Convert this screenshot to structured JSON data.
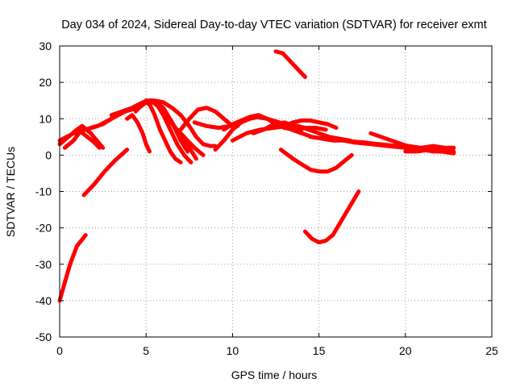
{
  "chart_data": {
    "type": "line",
    "title": "Day 034 of 2024, Sidereal Day-to-day VTEC variation (SDTVAR) for receiver exmt",
    "xlabel": "GPS time / hours",
    "ylabel": "SDTVAR / TECUs",
    "xlim": [
      0,
      25
    ],
    "ylim": [
      -50,
      30
    ],
    "xticks": [
      0,
      5,
      10,
      15,
      20,
      25
    ],
    "yticks": [
      -50,
      -40,
      -30,
      -20,
      -10,
      0,
      10,
      20,
      30
    ],
    "grid": true,
    "color": "#ff0000",
    "series": [
      {
        "name": "arc-1",
        "x": [
          0.0,
          0.3,
          0.6,
          1.0,
          1.5
        ],
        "y": [
          -40,
          -35,
          -30,
          -25,
          -22
        ]
      },
      {
        "name": "arc-2",
        "x": [
          1.4,
          2.0,
          2.6,
          3.2,
          3.9
        ],
        "y": [
          -11,
          -8,
          -4.5,
          -1.5,
          1.5
        ]
      },
      {
        "name": "arc-3",
        "x": [
          0.0,
          0.4,
          0.8,
          1.2,
          1.6,
          2.0,
          2.3
        ],
        "y": [
          4,
          5,
          6,
          6.5,
          5,
          3.5,
          2
        ]
      },
      {
        "name": "arc-4",
        "x": [
          0.0,
          0.5,
          1.0,
          1.3,
          1.8,
          2.5
        ],
        "y": [
          3,
          5,
          7,
          8,
          6,
          2
        ]
      },
      {
        "name": "arc-5",
        "x": [
          0.3,
          0.8,
          1.2,
          1.8,
          2.5,
          3.0,
          3.5,
          4.0
        ],
        "y": [
          2,
          4,
          6.5,
          7.5,
          8.5,
          10,
          11.5,
          12.5
        ]
      },
      {
        "name": "arc-6",
        "x": [
          1.5,
          2.2,
          3.0,
          3.8,
          4.5,
          5.0,
          5.4,
          5.8,
          6.2,
          6.6,
          7.0,
          7.4
        ],
        "y": [
          7,
          8,
          10,
          12,
          13,
          15,
          14.5,
          13,
          11,
          8,
          4,
          1
        ]
      },
      {
        "name": "arc-7",
        "x": [
          3.0,
          3.6,
          4.2,
          4.8,
          5.2,
          5.6,
          6.0,
          6.6,
          7.2,
          7.8,
          8.3
        ],
        "y": [
          11,
          12,
          13,
          14.5,
          15,
          14,
          12,
          8,
          5,
          2,
          0
        ]
      },
      {
        "name": "arc-8",
        "x": [
          4.4,
          4.8,
          5.2,
          5.6,
          6.0,
          6.5,
          7.0,
          7.5,
          7.9
        ],
        "y": [
          12,
          14,
          15,
          14.5,
          13,
          9,
          5,
          2,
          -1
        ]
      },
      {
        "name": "arc-9",
        "x": [
          4.6,
          5.0,
          5.3,
          5.6,
          6.0,
          6.4,
          6.8,
          7.2,
          7.6
        ],
        "y": [
          13,
          14.5,
          15,
          14,
          11,
          7,
          3,
          0,
          -2
        ]
      },
      {
        "name": "arc-10",
        "x": [
          4.2,
          4.6,
          4.9,
          5.2,
          5.5,
          5.8,
          6.1,
          6.4,
          6.7,
          7.0
        ],
        "y": [
          13,
          14,
          14.5,
          14,
          11,
          7,
          4,
          1,
          -1,
          -2
        ]
      },
      {
        "name": "arc-11",
        "x": [
          3.9,
          4.2,
          4.5,
          4.8,
          5.0,
          5.2
        ],
        "y": [
          10,
          11,
          9,
          6,
          3,
          1
        ]
      },
      {
        "name": "arc-12",
        "x": [
          5.0,
          5.5,
          6.0,
          6.5,
          7.0,
          7.5,
          7.9,
          8.3,
          8.7,
          9.0
        ],
        "y": [
          15,
          15,
          14.5,
          13,
          11,
          8,
          5,
          3,
          2.5,
          2.5
        ]
      },
      {
        "name": "arc-13",
        "x": [
          7.0,
          7.5,
          8.0,
          8.5,
          9.0,
          9.5,
          10.0,
          10.3
        ],
        "y": [
          7,
          10,
          12.5,
          13,
          12,
          10,
          8,
          8
        ]
      },
      {
        "name": "arc-14",
        "x": [
          7.8,
          8.5,
          9.2,
          9.9,
          10.6,
          11.3,
          12.0,
          12.7,
          13.4
        ],
        "y": [
          9,
          8,
          7.5,
          8,
          9.5,
          10.5,
          10,
          9,
          7.5
        ]
      },
      {
        "name": "arc-15",
        "x": [
          9.0,
          9.5,
          10.0,
          10.5,
          11.0,
          11.5
        ],
        "y": [
          1.5,
          4,
          7,
          9,
          10,
          10.5
        ]
      },
      {
        "name": "arc-16",
        "x": [
          9.5,
          10.0,
          10.5,
          11.0,
          11.5,
          12.0,
          12.5,
          13.0,
          13.5,
          14.0
        ],
        "y": [
          7,
          8.5,
          9.5,
          10.5,
          11,
          10,
          8.5,
          7.5,
          7,
          7
        ]
      },
      {
        "name": "arc-17",
        "x": [
          10.0,
          10.8,
          11.6,
          12.4,
          13.2,
          13.8,
          14.4,
          15.0,
          15.6,
          16.2,
          16.8
        ],
        "y": [
          4,
          6,
          7,
          7.5,
          8,
          8,
          7,
          6,
          5,
          4.5,
          4
        ]
      },
      {
        "name": "arc-18",
        "x": [
          11.2,
          11.8,
          12.4,
          13.0,
          13.6,
          14.2,
          14.8,
          15.4
        ],
        "y": [
          6,
          7,
          8.5,
          9,
          8,
          7.5,
          7.5,
          7
        ]
      },
      {
        "name": "arc-19",
        "x": [
          13.0,
          13.5,
          14.0,
          14.5,
          15.0,
          15.5,
          16.0
        ],
        "y": [
          8,
          9,
          9.5,
          9.5,
          9,
          8.5,
          7.5
        ]
      },
      {
        "name": "arc-20",
        "x": [
          13.4,
          14.0,
          14.6,
          15.2,
          15.8,
          16.4,
          17.0,
          17.6,
          18.2
        ],
        "y": [
          7,
          6,
          5,
          4.5,
          4,
          4,
          3.5,
          3.5,
          3
        ]
      },
      {
        "name": "arc-21",
        "x": [
          14.5,
          15.5,
          16.5,
          17.5,
          18.5,
          19.5,
          20.5,
          21.5,
          22.5
        ],
        "y": [
          5,
          4.5,
          4,
          3.5,
          3,
          2.5,
          2,
          1.5,
          1
        ]
      },
      {
        "name": "arc-22",
        "x": [
          17.0,
          18.0,
          19.0,
          20.0,
          21.0,
          22.0,
          22.8
        ],
        "y": [
          3.5,
          3,
          2.5,
          2,
          1.5,
          1,
          1
        ]
      },
      {
        "name": "arc-23",
        "x": [
          18.0,
          18.6,
          19.2,
          19.8,
          20.4,
          21.0,
          21.6,
          22.2,
          22.8
        ],
        "y": [
          6,
          5,
          4,
          3,
          2,
          1.5,
          1,
          1,
          0.5
        ]
      },
      {
        "name": "arc-24",
        "x": [
          19.5,
          20.2,
          20.9,
          21.6,
          22.3,
          22.8
        ],
        "y": [
          3,
          2.5,
          2,
          2.5,
          2,
          2
        ]
      },
      {
        "name": "arc-25",
        "x": [
          20.0,
          20.7,
          21.4,
          22.1,
          22.8
        ],
        "y": [
          1,
          1,
          1.5,
          1,
          0.5
        ]
      },
      {
        "name": "arc-26",
        "x": [
          12.8,
          13.5,
          14.0,
          14.5,
          15.0,
          15.5,
          16.0,
          16.5,
          16.9
        ],
        "y": [
          1.5,
          -1,
          -2.5,
          -4,
          -4.5,
          -4.5,
          -3.5,
          -1.5,
          0
        ]
      },
      {
        "name": "arc-27",
        "x": [
          14.2,
          14.6,
          15.0,
          15.4,
          15.8,
          16.3,
          16.8,
          17.3
        ],
        "y": [
          -21,
          -23,
          -24,
          -23.5,
          -22,
          -18,
          -14,
          -10
        ]
      },
      {
        "name": "arc-28",
        "x": [
          12.5,
          12.9,
          13.3,
          13.7,
          14.2
        ],
        "y": [
          28.5,
          28,
          26,
          24,
          21.5
        ]
      }
    ]
  }
}
